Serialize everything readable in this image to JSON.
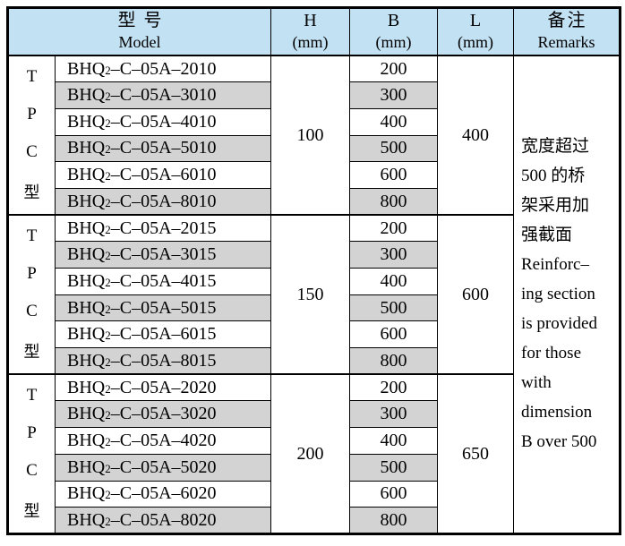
{
  "header": {
    "model_zh": "型号",
    "model_en": "Model",
    "col_h": "H",
    "col_b": "B",
    "col_l": "L",
    "unit": "(mm)",
    "remarks_zh": "备注",
    "remarks_en": "Remarks"
  },
  "side_label": {
    "chars": [
      "T",
      "P",
      "C",
      "型"
    ]
  },
  "groups": [
    {
      "h": "100",
      "l": "400",
      "rows": [
        {
          "model_pre": "BHQ",
          "model_sub": "2",
          "model_post": "–C–05A–2010",
          "b": "200"
        },
        {
          "model_pre": "BHQ",
          "model_sub": "2",
          "model_post": "–C–05A–3010",
          "b": "300"
        },
        {
          "model_pre": "BHQ",
          "model_sub": "2",
          "model_post": "–C–05A–4010",
          "b": "400"
        },
        {
          "model_pre": "BHQ",
          "model_sub": "2",
          "model_post": "–C–05A–5010",
          "b": "500"
        },
        {
          "model_pre": "BHQ",
          "model_sub": "2",
          "model_post": "–C–05A–6010",
          "b": "600"
        },
        {
          "model_pre": "BHQ",
          "model_sub": "2",
          "model_post": "–C–05A–8010",
          "b": "800"
        }
      ]
    },
    {
      "h": "150",
      "l": "600",
      "rows": [
        {
          "model_pre": "BHQ",
          "model_sub": "2",
          "model_post": "–C–05A–2015",
          "b": "200"
        },
        {
          "model_pre": "BHQ",
          "model_sub": "2",
          "model_post": "–C–05A–3015",
          "b": "300"
        },
        {
          "model_pre": "BHQ",
          "model_sub": "2",
          "model_post": "–C–05A–4015",
          "b": "400"
        },
        {
          "model_pre": "BHQ",
          "model_sub": "2",
          "model_post": "–C–05A–5015",
          "b": "500"
        },
        {
          "model_pre": "BHQ",
          "model_sub": "2",
          "model_post": "–C–05A–6015",
          "b": "600"
        },
        {
          "model_pre": "BHQ",
          "model_sub": "2",
          "model_post": "–C–05A–8015",
          "b": "800"
        }
      ]
    },
    {
      "h": "200",
      "l": "650",
      "rows": [
        {
          "model_pre": "BHQ",
          "model_sub": "2",
          "model_post": "–C–05A–2020",
          "b": "200"
        },
        {
          "model_pre": "BHQ",
          "model_sub": "2",
          "model_post": "–C–05A–3020",
          "b": "300"
        },
        {
          "model_pre": "BHQ",
          "model_sub": "2",
          "model_post": "–C–05A–4020",
          "b": "400"
        },
        {
          "model_pre": "BHQ",
          "model_sub": "2",
          "model_post": "–C–05A–5020",
          "b": "500"
        },
        {
          "model_pre": "BHQ",
          "model_sub": "2",
          "model_post": "–C–05A–6020",
          "b": "600"
        },
        {
          "model_pre": "BHQ",
          "model_sub": "2",
          "model_post": "–C–05A–8020",
          "b": "800"
        }
      ]
    }
  ],
  "remarks": {
    "lines": [
      "宽度超过",
      "500 的桥",
      "架采用加",
      "强截面",
      "Reinforc–",
      "ing section",
      "is provided",
      "for those",
      "with",
      "dimension",
      "B over 500"
    ]
  },
  "colors": {
    "header_bg": "#c2e1f3",
    "row_alt_bg": "#d3d3d3",
    "border": "#000000"
  }
}
